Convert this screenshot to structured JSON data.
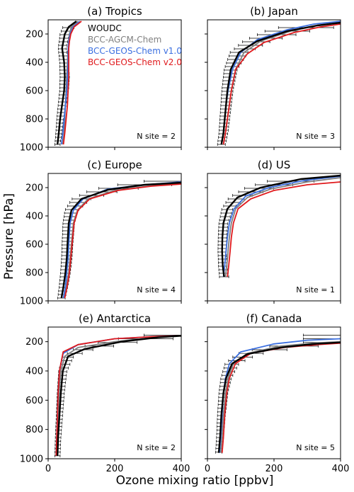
{
  "figure": {
    "ylabel": "Pressure [hPa]",
    "xlabel": "Ozone mixing ratio [ppbv]"
  },
  "legend": [
    {
      "name": "WOUDC",
      "color": "#000000"
    },
    {
      "name": "BCC-AGCM-Chem",
      "color": "#808080"
    },
    {
      "name": "BCC-GEOS-Chem v1.0",
      "color": "#3b6fe0"
    },
    {
      "name": "BCC-GEOS-Chem v2.0",
      "color": "#e0191c"
    }
  ],
  "colors": {
    "woudc": "#000000",
    "agcm": "#808080",
    "v10": "#3b6fe0",
    "v20": "#e0191c"
  },
  "chart_data": [
    {
      "type": "line",
      "title": "(a) Tropics",
      "annotation": "N site = 2",
      "xlim": [
        0,
        400
      ],
      "ylim": [
        1000,
        100
      ],
      "xticks": [
        0,
        200,
        400
      ],
      "xticklabels": [
        "",
        "",
        ""
      ],
      "yticks": [
        200,
        400,
        600,
        800,
        1000
      ],
      "yticklabels": [
        "200",
        "400",
        "600",
        "800",
        "1000"
      ],
      "series": [
        {
          "name": "BCC-AGCM-Chem",
          "x": [
            44,
            48,
            50,
            52,
            54,
            56,
            58,
            60,
            62,
            64,
            70,
            90
          ],
          "y": [
            980,
            900,
            800,
            700,
            600,
            500,
            400,
            300,
            250,
            200,
            150,
            110
          ]
        },
        {
          "name": "BCC-GEOS-Chem v1.0",
          "x": [
            40,
            44,
            48,
            52,
            56,
            58,
            60,
            60,
            62,
            66,
            75,
            95
          ],
          "y": [
            980,
            900,
            800,
            700,
            600,
            500,
            400,
            300,
            250,
            200,
            150,
            110
          ]
        },
        {
          "name": "BCC-GEOS-Chem v2.0",
          "x": [
            46,
            50,
            54,
            58,
            60,
            62,
            62,
            62,
            64,
            68,
            78,
            100
          ],
          "y": [
            980,
            900,
            800,
            700,
            600,
            500,
            400,
            300,
            250,
            200,
            150,
            110
          ]
        },
        {
          "name": "WOUDC",
          "x": [
            28,
            32,
            36,
            42,
            48,
            50,
            48,
            42,
            46,
            50,
            62,
            85
          ],
          "y": [
            980,
            900,
            800,
            700,
            600,
            500,
            400,
            300,
            250,
            200,
            150,
            110
          ]
        }
      ]
    },
    {
      "type": "line",
      "title": "(b) Japan",
      "annotation": "N site = 3",
      "xlim": [
        0,
        400
      ],
      "ylim": [
        1000,
        100
      ],
      "xticks": [
        0,
        200,
        400
      ],
      "xticklabels": [
        "",
        "",
        ""
      ],
      "yticks": [
        200,
        400,
        600,
        800,
        1000
      ],
      "yticklabels": [
        "",
        "",
        "",
        "",
        ""
      ],
      "series": [
        {
          "name": "BCC-AGCM-Chem",
          "x": [
            48,
            54,
            60,
            66,
            72,
            85,
            110,
            160,
            250,
            330,
            400
          ],
          "y": [
            980,
            900,
            800,
            700,
            600,
            450,
            330,
            250,
            180,
            140,
            120
          ]
        },
        {
          "name": "BCC-GEOS-Chem v1.0",
          "x": [
            42,
            48,
            52,
            56,
            62,
            75,
            100,
            150,
            240,
            320,
            400
          ],
          "y": [
            980,
            900,
            800,
            700,
            600,
            450,
            330,
            240,
            170,
            130,
            110
          ]
        },
        {
          "name": "BCC-GEOS-Chem v2.0",
          "x": [
            48,
            54,
            60,
            66,
            72,
            85,
            120,
            170,
            260,
            340,
            400
          ],
          "y": [
            980,
            900,
            800,
            700,
            600,
            450,
            340,
            260,
            190,
            150,
            130
          ]
        },
        {
          "name": "WOUDC",
          "x": [
            42,
            48,
            52,
            56,
            60,
            70,
            95,
            150,
            240,
            330,
            400
          ],
          "y": [
            980,
            900,
            800,
            700,
            600,
            450,
            330,
            250,
            180,
            140,
            120
          ]
        }
      ]
    },
    {
      "type": "line",
      "title": "(c) Europe",
      "annotation": "N site = 4",
      "xlim": [
        0,
        400
      ],
      "ylim": [
        1000,
        100
      ],
      "xticks": [
        0,
        200,
        400
      ],
      "xticklabels": [
        "",
        "",
        ""
      ],
      "yticks": [
        200,
        400,
        600,
        800,
        1000
      ],
      "yticklabels": [
        "200",
        "400",
        "600",
        "800",
        "1000"
      ],
      "series": [
        {
          "name": "BCC-AGCM-Chem",
          "x": [
            48,
            55,
            62,
            66,
            70,
            76,
            88,
            120,
            200,
            300,
            400
          ],
          "y": [
            980,
            900,
            800,
            700,
            600,
            450,
            360,
            280,
            220,
            190,
            170
          ]
        },
        {
          "name": "BCC-GEOS-Chem v1.0",
          "x": [
            46,
            52,
            56,
            60,
            62,
            66,
            76,
            105,
            180,
            290,
            400
          ],
          "y": [
            980,
            900,
            800,
            700,
            600,
            450,
            360,
            280,
            210,
            180,
            160
          ]
        },
        {
          "name": "BCC-GEOS-Chem v2.0",
          "x": [
            50,
            57,
            64,
            68,
            72,
            78,
            90,
            125,
            210,
            310,
            400
          ],
          "y": [
            980,
            900,
            800,
            700,
            600,
            450,
            360,
            280,
            220,
            190,
            175
          ]
        },
        {
          "name": "WOUDC",
          "x": [
            40,
            46,
            52,
            56,
            58,
            62,
            70,
            100,
            180,
            290,
            400
          ],
          "y": [
            980,
            900,
            800,
            700,
            600,
            450,
            360,
            280,
            215,
            180,
            165
          ]
        }
      ]
    },
    {
      "type": "line",
      "title": "(d) US",
      "annotation": "N site = 1",
      "xlim": [
        0,
        400
      ],
      "ylim": [
        1000,
        100
      ],
      "xticks": [
        0,
        200,
        400
      ],
      "xticklabels": [
        "",
        "",
        ""
      ],
      "yticks": [
        200,
        400,
        600,
        800,
        1000
      ],
      "yticklabels": [
        "",
        "",
        "",
        "",
        ""
      ],
      "series": [
        {
          "name": "BCC-AGCM-Chem",
          "x": [
            54,
            58,
            62,
            66,
            72,
            85,
            120,
            190,
            300,
            400
          ],
          "y": [
            830,
            750,
            650,
            550,
            450,
            350,
            270,
            210,
            160,
            130
          ]
        },
        {
          "name": "BCC-GEOS-Chem v1.0",
          "x": [
            48,
            52,
            56,
            60,
            66,
            80,
            115,
            185,
            290,
            400
          ],
          "y": [
            830,
            750,
            650,
            550,
            450,
            350,
            260,
            200,
            150,
            120
          ]
        },
        {
          "name": "BCC-GEOS-Chem v2.0",
          "x": [
            60,
            64,
            68,
            72,
            78,
            92,
            130,
            200,
            300,
            400
          ],
          "y": [
            830,
            750,
            650,
            550,
            450,
            350,
            280,
            220,
            180,
            160
          ]
        },
        {
          "name": "WOUDC",
          "x": [
            50,
            46,
            44,
            45,
            48,
            60,
            90,
            160,
            280,
            400
          ],
          "y": [
            830,
            750,
            650,
            550,
            450,
            350,
            270,
            200,
            140,
            115
          ]
        }
      ]
    },
    {
      "type": "line",
      "title": "(e) Antarctica",
      "annotation": "N site = 2",
      "xlim": [
        0,
        400
      ],
      "ylim": [
        1000,
        100
      ],
      "xticks": [
        0,
        200,
        400
      ],
      "xticklabels": [
        "0",
        "200",
        "400"
      ],
      "yticks": [
        200,
        400,
        600,
        800,
        1000
      ],
      "yticklabels": [
        "200",
        "400",
        "600",
        "800",
        "1000"
      ],
      "series": [
        {
          "name": "BCC-AGCM-Chem",
          "x": [
            26,
            28,
            30,
            33,
            38,
            50,
            90,
            200,
            320,
            400
          ],
          "y": [
            980,
            850,
            700,
            550,
            400,
            300,
            240,
            200,
            170,
            160
          ]
        },
        {
          "name": "BCC-GEOS-Chem v1.0",
          "x": [
            24,
            26,
            28,
            30,
            34,
            45,
            90,
            200,
            320,
            400
          ],
          "y": [
            980,
            850,
            700,
            550,
            400,
            280,
            220,
            180,
            165,
            160
          ]
        },
        {
          "name": "BCC-GEOS-Chem v2.0",
          "x": [
            24,
            26,
            28,
            30,
            34,
            45,
            90,
            200,
            320,
            400
          ],
          "y": [
            980,
            850,
            700,
            550,
            400,
            270,
            220,
            180,
            165,
            160
          ]
        },
        {
          "name": "WOUDC",
          "x": [
            28,
            30,
            34,
            38,
            44,
            60,
            110,
            220,
            330,
            400
          ],
          "y": [
            980,
            850,
            700,
            550,
            400,
            300,
            250,
            200,
            170,
            160
          ]
        }
      ]
    },
    {
      "type": "line",
      "title": "(f) Canada",
      "annotation": "N site = 5",
      "xlim": [
        0,
        400
      ],
      "ylim": [
        1000,
        100
      ],
      "xticks": [
        0,
        200,
        400
      ],
      "xticklabels": [
        "0",
        "200",
        "400"
      ],
      "yticks": [
        200,
        400,
        600,
        800,
        1000
      ],
      "yticklabels": [
        "",
        "",
        "",
        "",
        ""
      ],
      "series": [
        {
          "name": "BCC-AGCM-Chem",
          "x": [
            40,
            44,
            48,
            54,
            62,
            78,
            120,
            220,
            320,
            400
          ],
          "y": [
            960,
            850,
            700,
            550,
            450,
            350,
            280,
            230,
            210,
            200
          ]
        },
        {
          "name": "BCC-GEOS-Chem v1.0",
          "x": [
            36,
            40,
            44,
            48,
            54,
            66,
            100,
            200,
            300,
            400
          ],
          "y": [
            960,
            850,
            700,
            550,
            450,
            350,
            270,
            215,
            190,
            180
          ]
        },
        {
          "name": "BCC-GEOS-Chem v2.0",
          "x": [
            44,
            48,
            52,
            58,
            66,
            84,
            130,
            230,
            330,
            400
          ],
          "y": [
            960,
            850,
            700,
            550,
            450,
            350,
            280,
            240,
            220,
            210
          ]
        },
        {
          "name": "WOUDC",
          "x": [
            34,
            38,
            42,
            48,
            56,
            74,
            120,
            220,
            320,
            400
          ],
          "y": [
            960,
            850,
            700,
            550,
            450,
            350,
            285,
            240,
            215,
            205
          ]
        }
      ]
    }
  ]
}
